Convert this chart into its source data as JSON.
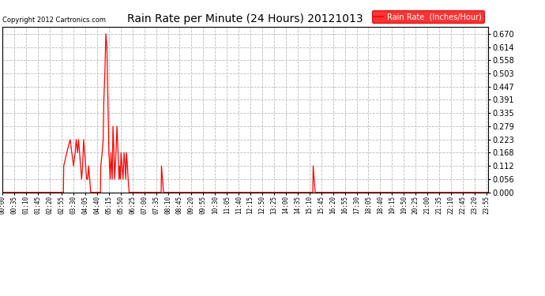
{
  "title": "Rain Rate per Minute (24 Hours) 20121013",
  "copyright_text": "Copyright 2012 Cartronics.com",
  "legend_label": "Rain Rate  (Inches/Hour)",
  "legend_bg": "#ff0000",
  "legend_text_color": "#ffffff",
  "line_color": "#ff0000",
  "background_color": "#ffffff",
  "grid_color": "#bbbbbb",
  "yticks": [
    0.0,
    0.056,
    0.112,
    0.168,
    0.223,
    0.279,
    0.335,
    0.391,
    0.447,
    0.503,
    0.558,
    0.614,
    0.67
  ],
  "ylim": [
    0.0,
    0.7
  ],
  "total_minutes": 1440,
  "tick_interval": 35,
  "x_tick_labels": [
    "00:00",
    "00:35",
    "01:10",
    "01:45",
    "02:20",
    "02:55",
    "03:30",
    "04:05",
    "04:40",
    "05:15",
    "05:50",
    "06:25",
    "07:00",
    "07:35",
    "08:10",
    "08:45",
    "09:20",
    "09:55",
    "10:30",
    "11:05",
    "11:40",
    "12:15",
    "12:50",
    "13:25",
    "14:00",
    "14:35",
    "15:10",
    "15:45",
    "16:20",
    "16:55",
    "17:30",
    "18:05",
    "18:40",
    "19:15",
    "19:50",
    "20:25",
    "21:00",
    "21:35",
    "22:10",
    "22:45",
    "23:20",
    "23:55"
  ],
  "data_points": [
    [
      0,
      0.0
    ],
    [
      180,
      0.0
    ],
    [
      181,
      0.112
    ],
    [
      190,
      0.168
    ],
    [
      200,
      0.223
    ],
    [
      205,
      0.168
    ],
    [
      210,
      0.112
    ],
    [
      215,
      0.168
    ],
    [
      218,
      0.223
    ],
    [
      222,
      0.168
    ],
    [
      225,
      0.223
    ],
    [
      228,
      0.168
    ],
    [
      231,
      0.112
    ],
    [
      234,
      0.056
    ],
    [
      237,
      0.112
    ],
    [
      240,
      0.223
    ],
    [
      243,
      0.168
    ],
    [
      246,
      0.112
    ],
    [
      249,
      0.056
    ],
    [
      252,
      0.056
    ],
    [
      255,
      0.112
    ],
    [
      258,
      0.056
    ],
    [
      261,
      0.0
    ],
    [
      265,
      0.0
    ],
    [
      290,
      0.0
    ],
    [
      291,
      0.112
    ],
    [
      295,
      0.168
    ],
    [
      298,
      0.223
    ],
    [
      300,
      0.391
    ],
    [
      303,
      0.503
    ],
    [
      306,
      0.67
    ],
    [
      309,
      0.614
    ],
    [
      312,
      0.391
    ],
    [
      315,
      0.168
    ],
    [
      317,
      0.112
    ],
    [
      319,
      0.056
    ],
    [
      321,
      0.168
    ],
    [
      323,
      0.112
    ],
    [
      325,
      0.056
    ],
    [
      327,
      0.279
    ],
    [
      330,
      0.168
    ],
    [
      332,
      0.056
    ],
    [
      334,
      0.112
    ],
    [
      336,
      0.168
    ],
    [
      339,
      0.279
    ],
    [
      342,
      0.168
    ],
    [
      345,
      0.056
    ],
    [
      347,
      0.112
    ],
    [
      349,
      0.056
    ],
    [
      351,
      0.168
    ],
    [
      354,
      0.112
    ],
    [
      357,
      0.056
    ],
    [
      360,
      0.168
    ],
    [
      363,
      0.112
    ],
    [
      365,
      0.056
    ],
    [
      367,
      0.168
    ],
    [
      370,
      0.112
    ],
    [
      372,
      0.056
    ],
    [
      375,
      0.0
    ],
    [
      380,
      0.0
    ],
    [
      470,
      0.0
    ],
    [
      471,
      0.112
    ],
    [
      474,
      0.056
    ],
    [
      477,
      0.0
    ],
    [
      920,
      0.0
    ],
    [
      921,
      0.112
    ],
    [
      924,
      0.056
    ],
    [
      927,
      0.0
    ],
    [
      1439,
      0.0
    ]
  ]
}
